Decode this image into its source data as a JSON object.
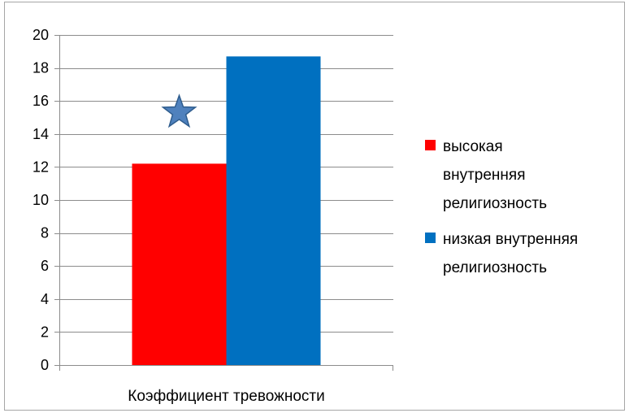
{
  "chart_data": {
    "type": "bar",
    "title": "",
    "xlabel": "",
    "ylabel": "",
    "categories": [
      "Коэффициент тревожности"
    ],
    "series": [
      {
        "name": "высокая\nвнутренняя\nрелигиозность",
        "values": [
          12.2
        ],
        "color": "#ff0000"
      },
      {
        "name": "низкая внутренняя\nрелигиозность",
        "values": [
          18.7
        ],
        "color": "#0070c0"
      }
    ],
    "ylim": [
      0,
      20
    ],
    "yticks": [
      "0",
      "2",
      "4",
      "6",
      "8",
      "10",
      "12",
      "14",
      "16",
      "18",
      "20"
    ],
    "grid": true,
    "legend_position": "right",
    "annotation": {
      "type": "star-icon",
      "category": "Коэффициент тревожности",
      "series": "высокая\nвнутренняя\nрелигиозность",
      "value": 15.3,
      "color": "#4f81bd"
    }
  }
}
